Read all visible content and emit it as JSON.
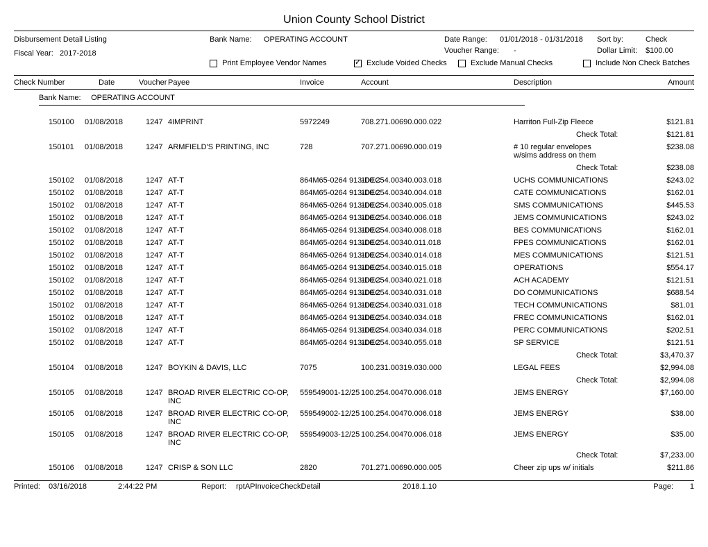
{
  "title": "Union County School District",
  "report_name": "Disbursement Detail Listing",
  "header": {
    "bank_name_label": "Bank Name:",
    "bank_name": "OPERATING ACCOUNT",
    "date_range_label": "Date Range:",
    "date_range": "01/01/2018 - 01/31/2018",
    "sort_by_label": "Sort by:",
    "sort_by": "Check",
    "fiscal_year_label": "Fiscal Year:",
    "fiscal_year": "2017-2018",
    "voucher_range_label": "Voucher Range:",
    "voucher_range": "-",
    "dollar_limit_label": "Dollar Limit:",
    "dollar_limit": "$100.00",
    "cb_print_label": "Print Employee Vendor Names",
    "cb_print_checked": false,
    "cb_exclude_voided_label": "Exclude Voided Checks",
    "cb_exclude_voided_checked": true,
    "cb_exclude_manual_label": "Exclude Manual Checks",
    "cb_exclude_manual_checked": false,
    "cb_include_noncheck_label": "Include Non Check Batches",
    "cb_include_noncheck_checked": false
  },
  "columns": {
    "check": "Check Number",
    "date": "Date",
    "voucher": "Voucher",
    "payee": "Payee",
    "invoice": "Invoice",
    "account": "Account",
    "description": "Description",
    "amount": "Amount"
  },
  "group": {
    "bank_name_label": "Bank Name:",
    "bank_name": "OPERATING ACCOUNT"
  },
  "check_total_label": "Check Total:",
  "rows": [
    {
      "check": "150100",
      "date": "01/08/2018",
      "voucher": "1247",
      "payee": "4IMPRINT",
      "invoice": "5972249",
      "account": "708.271.00690.000.022",
      "desc": "Harriton Full-Zip Fleece",
      "amount": "$121.81"
    },
    {
      "total": "$121.81"
    },
    {
      "check": "150101",
      "date": "01/08/2018",
      "voucher": "1247",
      "payee": "ARMFIELD'S PRINTING, INC",
      "invoice": "728",
      "account": "707.271.00690.000.019",
      "desc": "# 10 regular envelopes",
      "amount": "$238.08",
      "desc2": "w/sims address on them"
    },
    {
      "total": "$238.08"
    },
    {
      "check": "150102",
      "date": "01/08/2018",
      "voucher": "1247",
      "payee": "AT-T",
      "invoice": "864M65-0264 913-DEC",
      "account": "100.254.00340.003.018",
      "desc": "UCHS COMMUNICATIONS",
      "amount": "$243.02"
    },
    {
      "check": "150102",
      "date": "01/08/2018",
      "voucher": "1247",
      "payee": "AT-T",
      "invoice": "864M65-0264 913-DEC",
      "account": "100.254.00340.004.018",
      "desc": "CATE COMMUNICATIONS",
      "amount": "$162.01"
    },
    {
      "check": "150102",
      "date": "01/08/2018",
      "voucher": "1247",
      "payee": "AT-T",
      "invoice": "864M65-0264 913-DEC",
      "account": "100.254.00340.005.018",
      "desc": "SMS COMMUNICATIONS",
      "amount": "$445.53"
    },
    {
      "check": "150102",
      "date": "01/08/2018",
      "voucher": "1247",
      "payee": "AT-T",
      "invoice": "864M65-0264 913-DEC",
      "account": "100.254.00340.006.018",
      "desc": "JEMS COMMUNICATIONS",
      "amount": "$243.02"
    },
    {
      "check": "150102",
      "date": "01/08/2018",
      "voucher": "1247",
      "payee": "AT-T",
      "invoice": "864M65-0264 913-DEC",
      "account": "100.254.00340.008.018",
      "desc": "BES COMMUNICATIONS",
      "amount": "$162.01"
    },
    {
      "check": "150102",
      "date": "01/08/2018",
      "voucher": "1247",
      "payee": "AT-T",
      "invoice": "864M65-0264 913-DEC",
      "account": "100.254.00340.011.018",
      "desc": "FPES COMMUNICATIONS",
      "amount": "$162.01"
    },
    {
      "check": "150102",
      "date": "01/08/2018",
      "voucher": "1247",
      "payee": "AT-T",
      "invoice": "864M65-0264 913-DEC",
      "account": "100.254.00340.014.018",
      "desc": "MES COMMUNICATIONS",
      "amount": "$121.51"
    },
    {
      "check": "150102",
      "date": "01/08/2018",
      "voucher": "1247",
      "payee": "AT-T",
      "invoice": "864M65-0264 913-DEC",
      "account": "100.254.00340.015.018",
      "desc": "OPERATIONS",
      "amount": "$554.17"
    },
    {
      "check": "150102",
      "date": "01/08/2018",
      "voucher": "1247",
      "payee": "AT-T",
      "invoice": "864M65-0264 913-DEC",
      "account": "100.254.00340.021.018",
      "desc": "ACH ACADEMY",
      "amount": "$121.51"
    },
    {
      "check": "150102",
      "date": "01/08/2018",
      "voucher": "1247",
      "payee": "AT-T",
      "invoice": "864M65-0264 913-DEC",
      "account": "100.254.00340.031.018",
      "desc": "DO COMMUNICATIONS",
      "amount": "$688.54"
    },
    {
      "check": "150102",
      "date": "01/08/2018",
      "voucher": "1247",
      "payee": "AT-T",
      "invoice": "864M65-0264 913-DEC",
      "account": "100.254.00340.031.018",
      "desc": "TECH COMMUNICATIONS",
      "amount": "$81.01"
    },
    {
      "check": "150102",
      "date": "01/08/2018",
      "voucher": "1247",
      "payee": "AT-T",
      "invoice": "864M65-0264 913-DEC",
      "account": "100.254.00340.034.018",
      "desc": "FREC COMMUNICATIONS",
      "amount": "$162.01"
    },
    {
      "check": "150102",
      "date": "01/08/2018",
      "voucher": "1247",
      "payee": "AT-T",
      "invoice": "864M65-0264 913-DEC",
      "account": "100.254.00340.034.018",
      "desc": "PERC COMMUNICATIONS",
      "amount": "$202.51"
    },
    {
      "check": "150102",
      "date": "01/08/2018",
      "voucher": "1247",
      "payee": "AT-T",
      "invoice": "864M65-0264 913-DEC",
      "account": "100.254.00340.055.018",
      "desc": "SP SERVICE",
      "amount": "$121.51"
    },
    {
      "total": "$3,470.37"
    },
    {
      "check": "150104",
      "date": "01/08/2018",
      "voucher": "1247",
      "payee": "BOYKIN & DAVIS, LLC",
      "invoice": "7075",
      "account": "100.231.00319.030.000",
      "desc": "LEGAL FEES",
      "amount": "$2,994.08"
    },
    {
      "total": "$2,994.08"
    },
    {
      "check": "150105",
      "date": "01/08/2018",
      "voucher": "1247",
      "payee": "BROAD RIVER ELECTRIC CO-OP, INC",
      "invoice": "559549001-12/25",
      "account": "100.254.00470.006.018",
      "desc": "JEMS ENERGY",
      "amount": "$7,160.00",
      "tall": true
    },
    {
      "check": "150105",
      "date": "01/08/2018",
      "voucher": "1247",
      "payee": "BROAD RIVER ELECTRIC CO-OP, INC",
      "invoice": "559549002-12/25",
      "account": "100.254.00470.006.018",
      "desc": "JEMS ENERGY",
      "amount": "$38.00",
      "tall": true
    },
    {
      "check": "150105",
      "date": "01/08/2018",
      "voucher": "1247",
      "payee": "BROAD RIVER ELECTRIC CO-OP, INC",
      "invoice": "559549003-12/25",
      "account": "100.254.00470.006.018",
      "desc": "JEMS ENERGY",
      "amount": "$35.00",
      "tall": true
    },
    {
      "total": "$7,233.00"
    },
    {
      "check": "150106",
      "date": "01/08/2018",
      "voucher": "1247",
      "payee": "CRISP & SON LLC",
      "invoice": "2820",
      "account": "701.271.00690.000.005",
      "desc": "Cheer zip ups w/ initials",
      "amount": "$211.86"
    }
  ],
  "footer": {
    "printed_label": "Printed:",
    "printed_date": "03/16/2018",
    "printed_time": "2:44:22 PM",
    "report_label": "Report:",
    "report": "rptAPInvoiceCheckDetail",
    "version": "2018.1.10",
    "page_label": "Page:",
    "page": "1"
  }
}
